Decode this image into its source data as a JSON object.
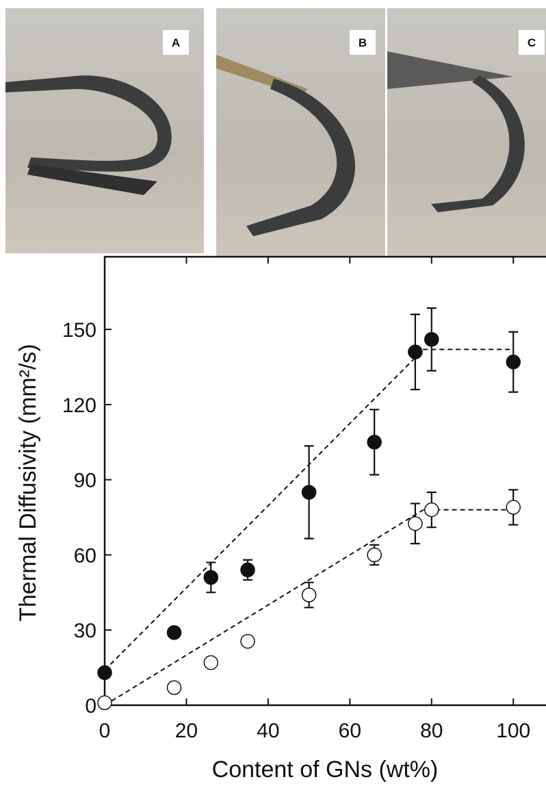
{
  "panels": [
    "A",
    "B",
    "C"
  ],
  "chart_data": {
    "type": "scatter",
    "x_label": "Content of GNs (wt%)",
    "y_label": "Thermal Diffusivity (mm²/s)",
    "xlim": [
      0,
      108
    ],
    "ylim": [
      0,
      179
    ],
    "xticks": [
      0,
      20,
      40,
      60,
      80,
      100
    ],
    "yticks": [
      0,
      30,
      60,
      90,
      120,
      150
    ],
    "series": [
      {
        "color": "#111111",
        "filled": true,
        "x": [
          0,
          17,
          26,
          35,
          50,
          66,
          76,
          80,
          100
        ],
        "values": [
          13,
          29,
          51,
          54,
          85,
          105,
          141,
          146,
          137
        ],
        "errors": [
          null,
          null,
          6,
          4,
          18.5,
          13,
          15,
          12.5,
          12
        ]
      },
      {
        "color": "#111111",
        "filled": false,
        "x": [
          0,
          17,
          26,
          35,
          50,
          66,
          76,
          80,
          100
        ],
        "values": [
          1,
          7,
          17,
          25.5,
          44,
          60,
          72.5,
          78,
          79
        ],
        "errors": [
          null,
          null,
          null,
          null,
          5,
          4,
          8,
          7,
          7
        ]
      }
    ],
    "fit_lines": [
      {
        "x": [
          0,
          78,
          100
        ],
        "values": [
          14,
          142,
          142
        ]
      },
      {
        "x": [
          0,
          78,
          100
        ],
        "values": [
          0,
          78,
          78
        ]
      }
    ]
  }
}
